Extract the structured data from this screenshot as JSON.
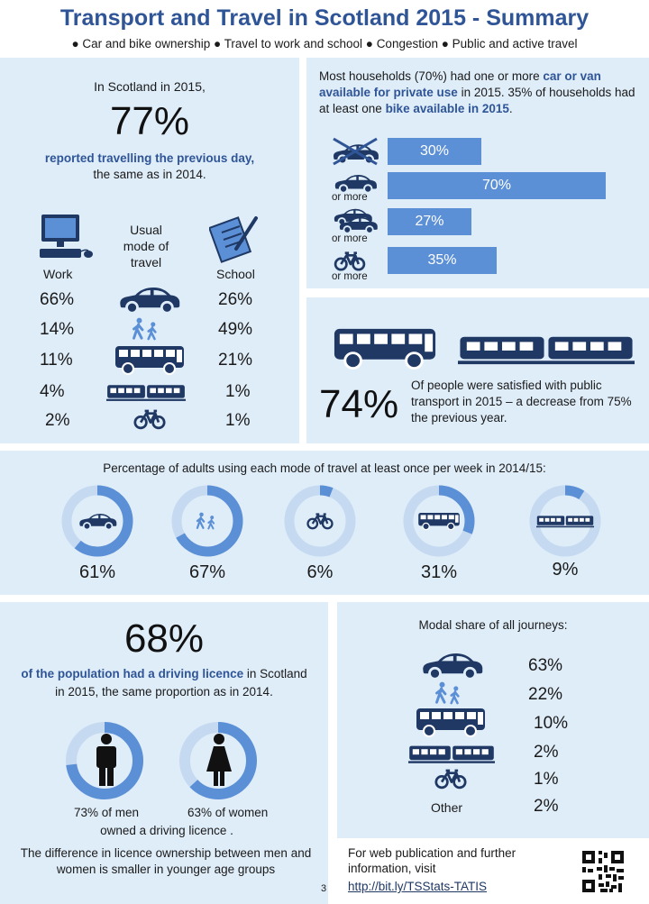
{
  "header": {
    "title": "Transport and Travel in Scotland 2015 - Summary",
    "topics": [
      "Car and bike ownership",
      "Travel to work and school",
      "Congestion",
      "Public and active travel"
    ]
  },
  "travel_previous_day": {
    "intro": "In Scotland in 2015,",
    "percent": "77%",
    "highlight": "reported travelling the previous day,",
    "suffix": "the same as in 2014."
  },
  "usual_mode": {
    "work_label": "Work",
    "mode_label": "Usual mode of travel",
    "school_label": "School",
    "rows": [
      {
        "mode": "car",
        "work": "66%",
        "school": "26%"
      },
      {
        "mode": "walk",
        "work": "14%",
        "school": "49%"
      },
      {
        "mode": "bus",
        "work": "11%",
        "school": "21%"
      },
      {
        "mode": "train",
        "work": "4%",
        "school": "1%"
      },
      {
        "mode": "bike",
        "work": "2%",
        "school": "1%"
      }
    ]
  },
  "ownership": {
    "text_before": "Most households (70%) had one or more ",
    "highlight1": "car or van available for private use",
    "text_middle": " in 2015. 35% of households had at least one ",
    "highlight2": "bike available in 2015",
    "text_end": ".",
    "or_more": "or more",
    "bars": [
      {
        "label": "30%",
        "value": 30,
        "icon": "no-car-icon"
      },
      {
        "label": "70%",
        "value": 70,
        "icon": "car-icon"
      },
      {
        "label": "27%",
        "value": 27,
        "icon": "two-cars-icon"
      },
      {
        "label": "35%",
        "value": 35,
        "icon": "bike-icon"
      }
    ]
  },
  "satisfaction": {
    "percent": "74%",
    "text": "Of people were satisfied with public transport in 2015 – a decrease from 75% the previous year."
  },
  "weekly_use": {
    "title": "Percentage of adults using each mode of travel at least once per week in 2014/15:",
    "items": [
      {
        "mode": "car",
        "label": "61%",
        "value": 61
      },
      {
        "mode": "walk",
        "label": "67%",
        "value": 67
      },
      {
        "mode": "bike",
        "label": "6%",
        "value": 6
      },
      {
        "mode": "bus",
        "label": "31%",
        "value": 31
      },
      {
        "mode": "train",
        "label": "9%",
        "value": 9
      }
    ]
  },
  "licence": {
    "percent": "68%",
    "highlight": "of the population had a driving licence",
    "text1": " in Scotland",
    "text2": "in 2015, the same proportion as in 2014.",
    "men_label": "73% of men",
    "men_value": 73,
    "women_label": "63% of women",
    "women_value": 63,
    "owned": "owned a driving licence .",
    "difference": "The difference in licence ownership between men and women is smaller in younger age groups"
  },
  "modal_share": {
    "title": "Modal share of all journeys:",
    "rows": [
      {
        "mode": "car",
        "label": "63%"
      },
      {
        "mode": "walk",
        "label": "22%"
      },
      {
        "mode": "bus",
        "label": "10%"
      },
      {
        "mode": "train",
        "label": "2%"
      },
      {
        "mode": "bike",
        "label": "1%"
      },
      {
        "mode": "other",
        "label": "2%",
        "text": "Other"
      }
    ]
  },
  "footer": {
    "text": "For web publication and further information, visit",
    "link": "http://bit.ly/TSStats-TATIS",
    "page": "3"
  },
  "colors": {
    "navy": "#1f3864",
    "accent": "#5b8fd6",
    "light_ring": "#c5d9f1",
    "panel": "#dfedf9"
  }
}
